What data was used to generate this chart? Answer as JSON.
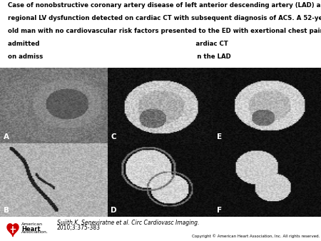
{
  "title_lines": [
    "Case of nonobstructive coronary artery disease of left anterior descending artery (LAD) and",
    "regional LV dysfunction detected on cardiac CT with subsequent diagnosis of ACS. A 52-year-",
    "old man with no cardiovascular risk factors presented to the ED with exertional chest pain and",
    "admitted                                                                         ardiac CT",
    "on admiss                                                                        n the LAD"
  ],
  "citation_line1": "Sujith K. Seneviratne et al. Circ Cardiovasc Imaging.",
  "citation_line2": "2010;3:375-383",
  "copyright_text": "Copyright © American Heart Association, Inc. All rights reserved.",
  "aha_text_line1": "American",
  "aha_text_line2": "Heart",
  "aha_text_line3": "Association.",
  "panel_labels": [
    "A",
    "C",
    "E",
    "B",
    "D",
    "F"
  ],
  "bg_color": "#ffffff",
  "text_color": "#000000",
  "title_fontsize": 6.2,
  "citation_fontsize": 5.8,
  "label_fontsize": 7.5
}
